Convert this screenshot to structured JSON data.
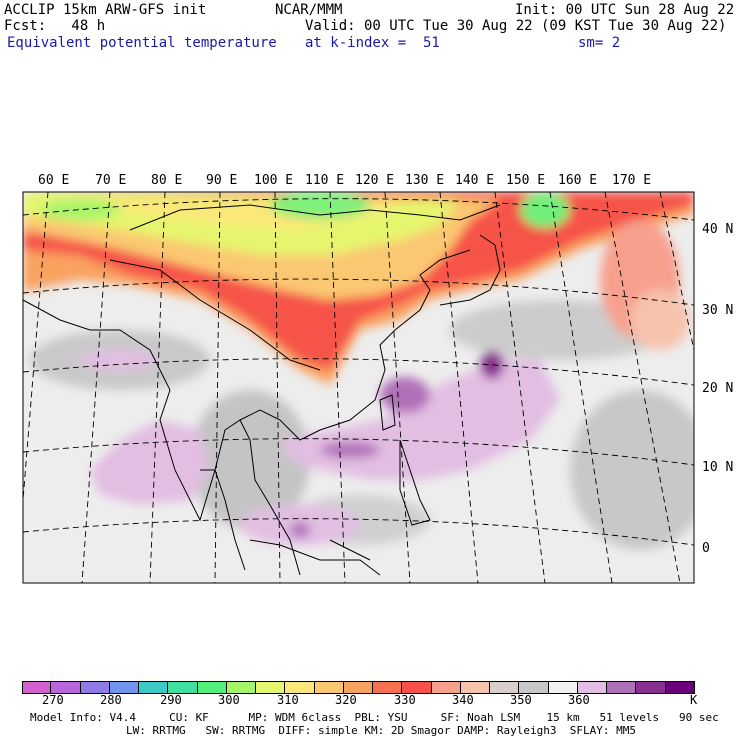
{
  "header": {
    "model": "ACCLIP 15km ARW-GFS init",
    "org": "NCAR/MMM",
    "init": "Init: 00 UTC Sun 28 Aug 22",
    "fcst": "Fcst:   48 h",
    "valid": "Valid: 00 UTC Tue 30 Aug 22 (09 KST Tue 30 Aug 22)",
    "field": "Equivalent potential temperature",
    "kindex": "at k-index =  51",
    "smooth": "sm= 2"
  },
  "map": {
    "lon_labels": [
      "60 E",
      "70 E",
      "80 E",
      "90 E",
      "100 E",
      "110 E",
      "120 E",
      "130 E",
      "140 E",
      "150 E",
      "160 E",
      "170 E"
    ],
    "lat_labels": [
      "40 N",
      "30 N",
      "20 N",
      "10 N",
      "0"
    ],
    "colors": {
      "land_outline": "#000000",
      "grid": "#000000",
      "cool": "#e8e8e8"
    }
  },
  "colorbar": {
    "colors": [
      "#d260d2",
      "#b766e0",
      "#8f7ae6",
      "#6f95ef",
      "#3ccbc6",
      "#3fe0a2",
      "#52ef7a",
      "#a5f56a",
      "#e6f56e",
      "#fbe77a",
      "#fbc872",
      "#f9a260",
      "#f77150",
      "#f65348",
      "#f7a08e",
      "#f6c3ad",
      "#d8cfcc",
      "#c8c8c8",
      "#f2f2f2",
      "#e2bee2",
      "#b070b8",
      "#8a2e92",
      "#6a007a"
    ],
    "labels": [
      "270",
      "280",
      "290",
      "300",
      "310",
      "320",
      "330",
      "340",
      "350",
      "360"
    ],
    "unit": "K"
  },
  "footer": {
    "line1": "Model Info: V4.4     CU: KF      MP: WDM 6class  PBL: YSU     SF: Noah LSM    15 km   51 levels   90 sec",
    "line2": "LW: RRTMG   SW: RRTMG  DIFF: simple KM: 2D Smagor DAMP: Rayleigh3  SFLAY: MM5"
  }
}
